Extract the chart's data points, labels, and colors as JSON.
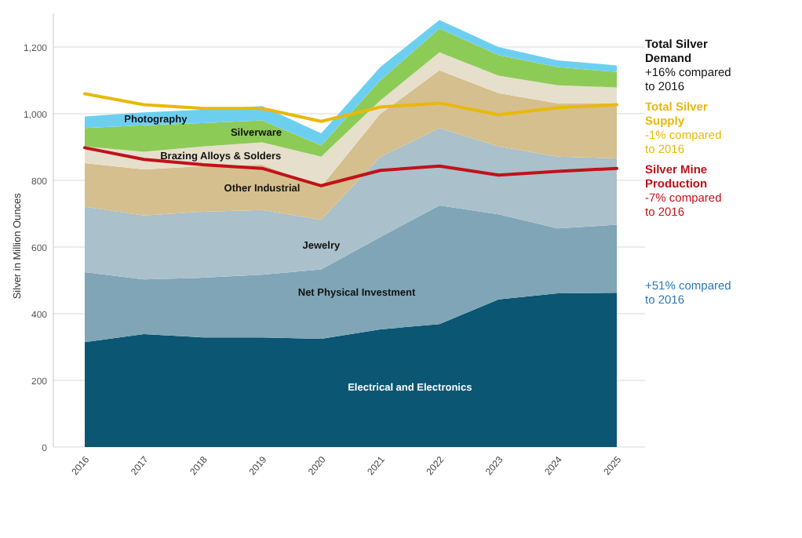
{
  "chart_data": {
    "type": "area",
    "stacked": true,
    "ylabel": "Silver in Million Ounces",
    "categories": [
      "2016",
      "2017",
      "2018",
      "2019",
      "2020",
      "2021",
      "2022",
      "2023",
      "2024",
      "2025"
    ],
    "ylim": [
      0,
      1300
    ],
    "yticks": [
      0,
      200,
      400,
      600,
      800,
      {
        "value": 1000,
        "label": "1,000"
      },
      {
        "value": 1200,
        "label": "1,200"
      }
    ],
    "grid": "y",
    "series": [
      {
        "name": "Electrical and Electronics",
        "color": "#0b5673",
        "values": [
          315,
          339,
          329,
          329,
          325,
          353,
          369,
          443,
          461,
          463
        ]
      },
      {
        "name": "Net Physical Investment",
        "color": "#7fa5b7",
        "values": [
          210,
          164,
          179,
          188,
          208,
          277,
          356,
          255,
          195,
          204
        ]
      },
      {
        "name": "Jewelry",
        "color": "#aac0ca",
        "values": [
          196,
          192,
          198,
          194,
          149,
          240,
          232,
          204,
          215,
          199
        ]
      },
      {
        "name": "Other Industrial",
        "color": "#d5bf8e",
        "values": [
          131,
          138,
          137,
          136,
          99,
          130,
          173,
          160,
          160,
          166
        ]
      },
      {
        "name": "Brazing Alloys & Solders",
        "color": "#e6dfcc",
        "values": [
          50,
          53,
          59,
          67,
          90,
          40,
          54,
          52,
          54,
          47
        ]
      },
      {
        "name": "Silverware",
        "color": "#8dcb57",
        "values": [
          55,
          79,
          70,
          66,
          34,
          60,
          71,
          62,
          55,
          46
        ]
      },
      {
        "name": "Photography",
        "color": "#6dcff0",
        "values": [
          35,
          39,
          40,
          43,
          36,
          40,
          26,
          24,
          20,
          20
        ]
      },
      {
        "name": "Total Silver Supply",
        "type": "line",
        "color": "#e8b90c",
        "values": [
          1060,
          1027,
          1016,
          1016,
          977,
          1020,
          1032,
          997,
          1018,
          1027
        ]
      },
      {
        "name": "Silver Mine Production",
        "type": "line",
        "color": "#c0121b",
        "values": [
          898,
          863,
          847,
          836,
          784,
          830,
          843,
          816,
          827,
          836
        ]
      }
    ],
    "annotations": [
      {
        "text": "Total Silver Demand",
        "x": "2025",
        "y": 1145
      },
      {
        "text": "+16% compared to 2016",
        "x": "2025",
        "y": 1145
      },
      {
        "text": "-1% compared to 2016",
        "x": "2025",
        "y": 1027
      },
      {
        "text": "-7% compared to 2016",
        "x": "2025",
        "y": 836
      },
      {
        "text": "+51% compared to 2016",
        "x": "2025",
        "y": 463
      }
    ]
  }
}
